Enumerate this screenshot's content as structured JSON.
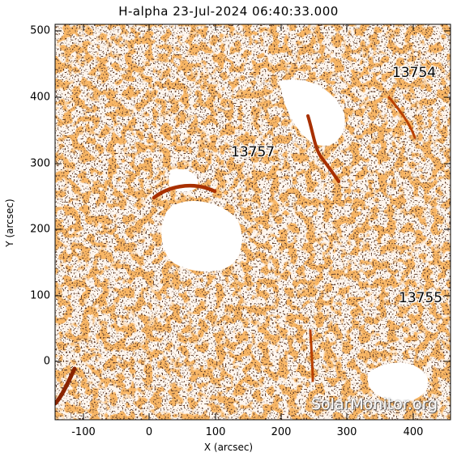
{
  "title": "H-alpha 23-Jul-2024 06:40:33.000",
  "axes": {
    "xlabel": "X (arcsec)",
    "ylabel": "Y (arcsec)",
    "x_ticks": [
      "-100",
      "0",
      "100",
      "200",
      "300",
      "400"
    ],
    "y_ticks": [
      "500",
      "400",
      "300",
      "200",
      "100",
      "0"
    ]
  },
  "regions": [
    "13754",
    "13757",
    "13755"
  ],
  "watermark": "SolarMonitor.org",
  "colors": {
    "background": "#ffffff",
    "chromosphere": "#f07a22",
    "filament": "#a83000",
    "texture": "#1a0a05"
  }
}
